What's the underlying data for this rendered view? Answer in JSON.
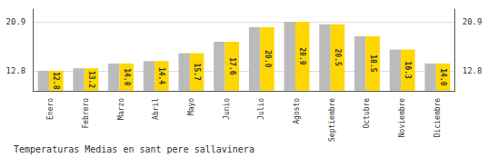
{
  "chart_data": {
    "type": "bar",
    "title": "Temperaturas Medias en sant pere sallavinera",
    "categories": [
      "Enero",
      "Febrero",
      "Marzo",
      "Abril",
      "Mayo",
      "Junio",
      "Julio",
      "Agosto",
      "Septiembre",
      "Octubre",
      "Noviembre",
      "Diciembre"
    ],
    "series": [
      {
        "color": "#BBBBBB",
        "values": [
          12.8,
          13.2,
          14.0,
          14.4,
          15.7,
          17.6,
          20.0,
          20.9,
          20.5,
          18.5,
          16.3,
          14.0
        ]
      },
      {
        "color": "#FFD700",
        "values": [
          12.8,
          13.2,
          14.0,
          14.4,
          15.7,
          17.6,
          20.0,
          20.9,
          20.5,
          18.5,
          16.3,
          14.0
        ],
        "value_labels": [
          "12.8",
          "13.2",
          "14.0",
          "14.4",
          "15.7",
          "17.6",
          "20.0",
          "20.9",
          "20.5",
          "18.5",
          "16.3",
          "14.0"
        ]
      }
    ],
    "ylim": [
      9.5,
      23.0
    ],
    "yticks": [
      12.8,
      20.9
    ],
    "grid": true,
    "data_labels": true
  }
}
